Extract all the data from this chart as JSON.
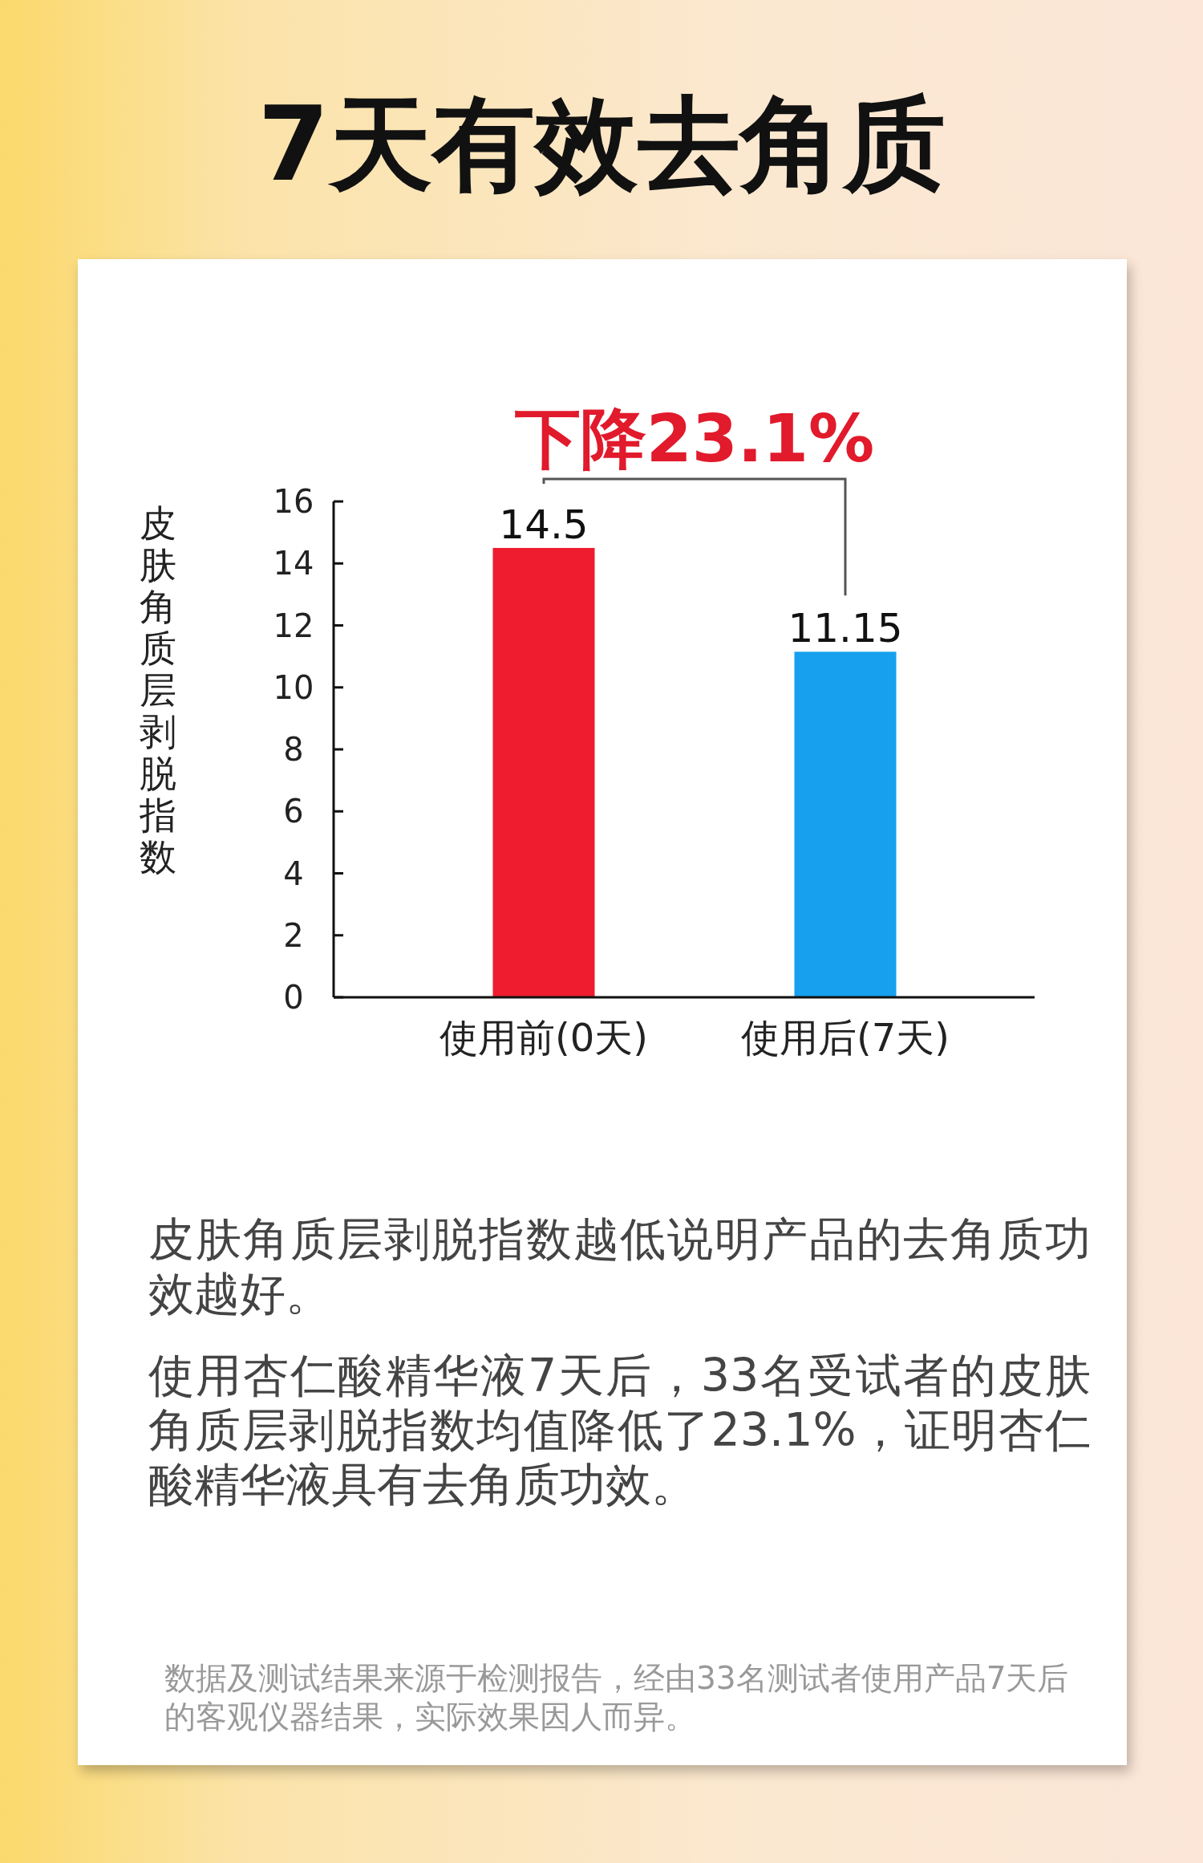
{
  "chart_data": {
    "type": "bar",
    "title": "7天有效去角质",
    "ylabel": "皮肤角质层剥脱指数",
    "categories": [
      "使用前(0天)",
      "使用后(7天)"
    ],
    "values": [
      14.5,
      11.15
    ],
    "colors": [
      "#ee1c2e",
      "#16a0ee"
    ],
    "ylim": [
      0,
      16
    ],
    "yticks": [
      0,
      2,
      4,
      6,
      8,
      10,
      12,
      14,
      16
    ],
    "data_labels": true,
    "annotations": [
      "下降23.1%",
      "皮肤角质层剥脱指数越低说明产品的去角质功效越好。",
      "使用杏仁酸精华液7天后，33名受试者的皮肤角质层剥脱指数均值降低了23.1%，证明杏仁酸精华液具有去角质功效。",
      "数据及测试结果来源于检测报告，经由33名测试者使用产品7天后的客观仪器结果，实际效果因人而异。"
    ]
  }
}
